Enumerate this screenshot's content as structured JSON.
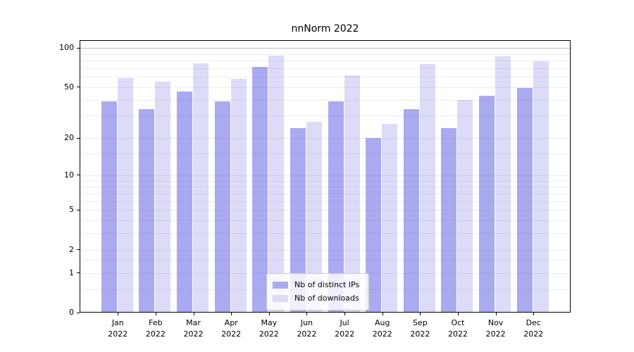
{
  "title": "nnNorm 2022",
  "legend": {
    "items": [
      {
        "label": "Nb of distinct IPs"
      },
      {
        "label": "Nb of downloads"
      }
    ]
  },
  "chart_data": {
    "type": "bar",
    "title": "nnNorm 2022",
    "xlabel": "",
    "ylabel": "",
    "categories": [
      "Jan 2022",
      "Feb 2022",
      "Mar 2022",
      "Apr 2022",
      "May 2022",
      "Jun 2022",
      "Jul 2022",
      "Aug 2022",
      "Sep 2022",
      "Oct 2022",
      "Nov 2022",
      "Dec 2022"
    ],
    "x_tick_line1": [
      "Jan",
      "Feb",
      "Mar",
      "Apr",
      "May",
      "Jun",
      "Jul",
      "Aug",
      "Sep",
      "Oct",
      "Nov",
      "Dec"
    ],
    "x_tick_line2": "2022",
    "series": [
      {
        "name": "Nb of distinct IPs",
        "color": "#aaaaf0",
        "values": [
          39,
          34,
          46,
          39,
          72,
          24,
          39,
          20,
          34,
          24,
          43,
          49
        ]
      },
      {
        "name": "Nb of downloads",
        "color": "#dcdcf8",
        "values": [
          59,
          55,
          76,
          58,
          88,
          27,
          62,
          26,
          75,
          40,
          86,
          79
        ]
      }
    ],
    "y_scale": "log10(1+x)",
    "ylim": [
      0,
      115
    ],
    "y_ticks": [
      100,
      50,
      20,
      10,
      5,
      2,
      1,
      0
    ],
    "y_grid_values": [
      0.5,
      1,
      1.5,
      2,
      3,
      4,
      5,
      6,
      7,
      8,
      9,
      10,
      15,
      20,
      30,
      40,
      50,
      60,
      70,
      80,
      90,
      100
    ],
    "grid": "on",
    "grid_above_bars": true,
    "legend_position": "lower-center"
  }
}
